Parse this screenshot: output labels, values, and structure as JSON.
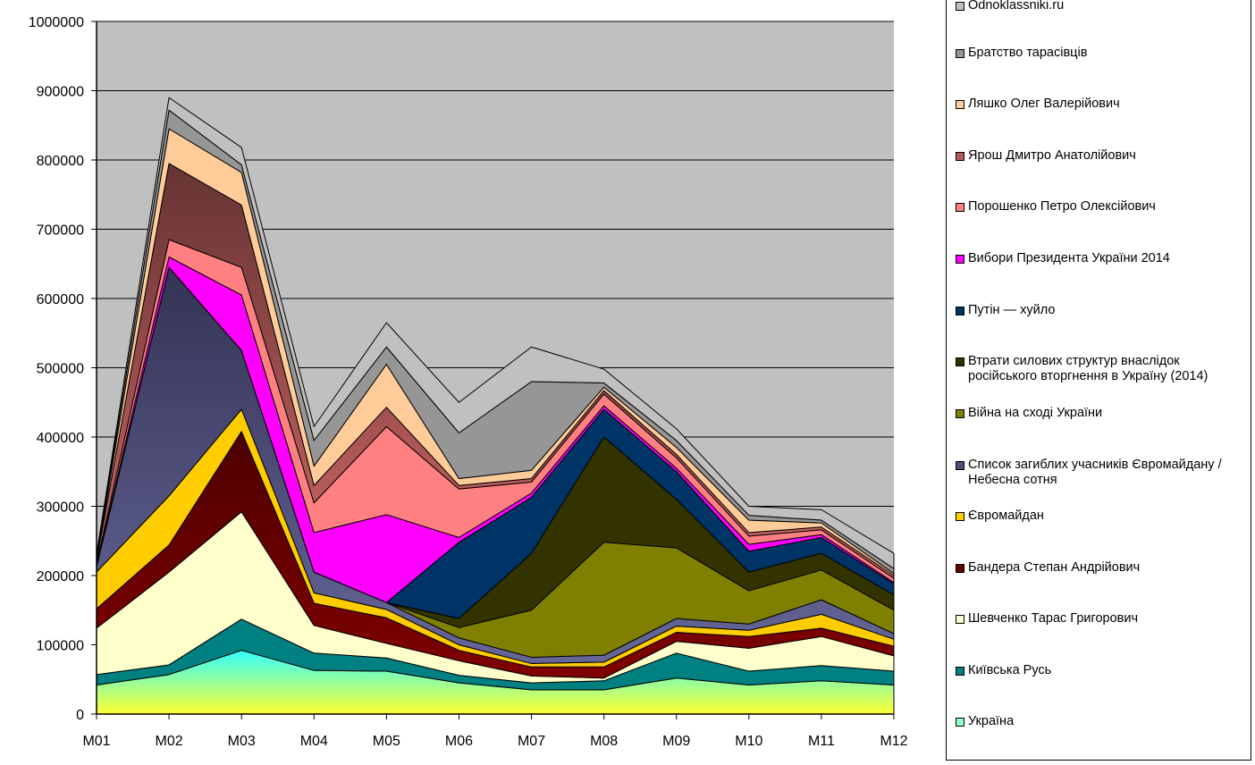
{
  "chart_data": {
    "type": "area",
    "stacked": true,
    "title": "",
    "xlabel": "",
    "ylabel": "",
    "ylim": [
      0,
      1000000
    ],
    "yticks": [
      0,
      100000,
      200000,
      300000,
      400000,
      500000,
      600000,
      700000,
      800000,
      900000,
      1000000
    ],
    "ytick_labels": [
      "0",
      "100000",
      "200000",
      "300000",
      "400000",
      "500000",
      "600000",
      "700000",
      "800000",
      "900000",
      "1000000"
    ],
    "grid": true,
    "legend_position": "right",
    "plot_background": "#c0c0c0",
    "categories": [
      "M01",
      "M02",
      "M03",
      "M04",
      "M05",
      "M06",
      "M07",
      "M08",
      "M09",
      "M10",
      "M11",
      "M12"
    ],
    "series": [
      {
        "name": "Україна",
        "color": "#33ffff",
        "color2": "#ffff33",
        "values": [
          42000,
          57000,
          92000,
          63000,
          62000,
          45000,
          35000,
          35000,
          52000,
          42000,
          48000,
          42000
        ]
      },
      {
        "name": "Київська Русь",
        "color": "#008080",
        "values": [
          15000,
          14000,
          45000,
          25000,
          19000,
          11000,
          10000,
          13000,
          36000,
          20000,
          22000,
          20000
        ]
      },
      {
        "name": "Шевченко Тарас Григорович",
        "color": "#ffffcc",
        "values": [
          67000,
          134000,
          155000,
          40000,
          21000,
          21000,
          10000,
          4000,
          17000,
          33000,
          42000,
          22000
        ]
      },
      {
        "name": "Бандера Степан Андрійович",
        "color": "#800000",
        "color2": "#4d0000",
        "values": [
          28000,
          39000,
          116000,
          32000,
          37000,
          15000,
          13000,
          16000,
          13000,
          17000,
          12000,
          14000
        ]
      },
      {
        "name": "Євромайдан",
        "color": "#ffcc00",
        "values": [
          53000,
          71000,
          32000,
          15000,
          12000,
          8000,
          5000,
          7000,
          9000,
          9000,
          20000,
          10000
        ]
      },
      {
        "name": "Список загиблих учасників Євромайдану / Небесна сотня",
        "color": "#666699",
        "color2": "#333355",
        "values": [
          8000,
          330000,
          85000,
          30000,
          10000,
          10000,
          9000,
          10000,
          11000,
          9000,
          21000,
          8000
        ]
      },
      {
        "name": "Війна на сході України",
        "color": "#808000",
        "values": [
          0,
          0,
          0,
          0,
          0,
          15000,
          68000,
          163000,
          102000,
          48000,
          43000,
          34000
        ]
      },
      {
        "name": "Втрати силових структур внаслідок російського вторгнення в Україну (2014)",
        "color": "#333300",
        "values": [
          0,
          0,
          0,
          0,
          0,
          13000,
          82000,
          152000,
          70000,
          27000,
          24000,
          22000
        ]
      },
      {
        "name": "Путін — хуйло",
        "color": "#003366",
        "values": [
          0,
          0,
          0,
          0,
          0,
          110000,
          81000,
          40000,
          40000,
          30000,
          23000,
          16000
        ]
      },
      {
        "name": "Вибори Президента України 2014",
        "color": "#ff00ff",
        "values": [
          1000,
          15000,
          80000,
          57000,
          127000,
          7000,
          6000,
          5000,
          5000,
          10000,
          4000,
          2000
        ]
      },
      {
        "name": "Порошенко Петро Олексійович",
        "color": "#ff8080",
        "values": [
          3000,
          25000,
          40000,
          43000,
          127000,
          70000,
          16000,
          17000,
          15000,
          12000,
          7000,
          6000
        ]
      },
      {
        "name": "Ярош Дмитро Анатолійович",
        "color": "#cc6666",
        "color2": "#663333",
        "values": [
          5000,
          110000,
          90000,
          25000,
          28000,
          5000,
          5000,
          5000,
          5000,
          5000,
          4000,
          4000
        ]
      },
      {
        "name": "Ляшко Олег Валерійович",
        "color": "#ffcc99",
        "values": [
          2000,
          50000,
          47000,
          28000,
          62000,
          10000,
          12000,
          5000,
          10000,
          18000,
          6000,
          3000
        ]
      },
      {
        "name": "Братство тарасівців",
        "color": "#969696",
        "values": [
          2000,
          27000,
          11000,
          37000,
          25000,
          66000,
          128000,
          6000,
          10000,
          7000,
          4000,
          7000
        ]
      },
      {
        "name": "Odnoklassniki.ru",
        "color": "#c0c0c0",
        "values": [
          5000,
          18000,
          25000,
          20000,
          35000,
          44000,
          50000,
          20000,
          17000,
          13000,
          15000,
          22000
        ]
      }
    ]
  },
  "legend": {
    "items": [
      {
        "label": "Odnoklassniki.ru",
        "color": "#c0c0c0"
      },
      {
        "label": "Братство тарасівців",
        "color": "#969696"
      },
      {
        "label": "Ляшко Олег Валерійович",
        "color": "#ffcc99"
      },
      {
        "label": "Ярош Дмитро Анатолійович",
        "color": "#b35959"
      },
      {
        "label": "Порошенко Петро Олексійович",
        "color": "#ff8080"
      },
      {
        "label": "Вибори Президента України 2014",
        "color": "#ff00ff"
      },
      {
        "label": "Путін — хуйло",
        "color": "#003366"
      },
      {
        "label": "Втрати силових структур внаслідок російського вторгнення в Україну (2014)",
        "color": "#333300"
      },
      {
        "label": "Війна на сході України",
        "color": "#808000"
      },
      {
        "label": "Список загиблих учасників Євромайдану / Небесна сотня",
        "color": "#4d4d7a"
      },
      {
        "label": "Євромайдан",
        "color": "#ffcc00"
      },
      {
        "label": "Бандера Степан Андрійович",
        "color": "#660000"
      },
      {
        "label": "Шевченко Тарас Григорович",
        "color": "#ffffcc"
      },
      {
        "label": "Київська Русь",
        "color": "#008080"
      },
      {
        "label": "Україна",
        "color": "#99ffcc"
      }
    ]
  }
}
